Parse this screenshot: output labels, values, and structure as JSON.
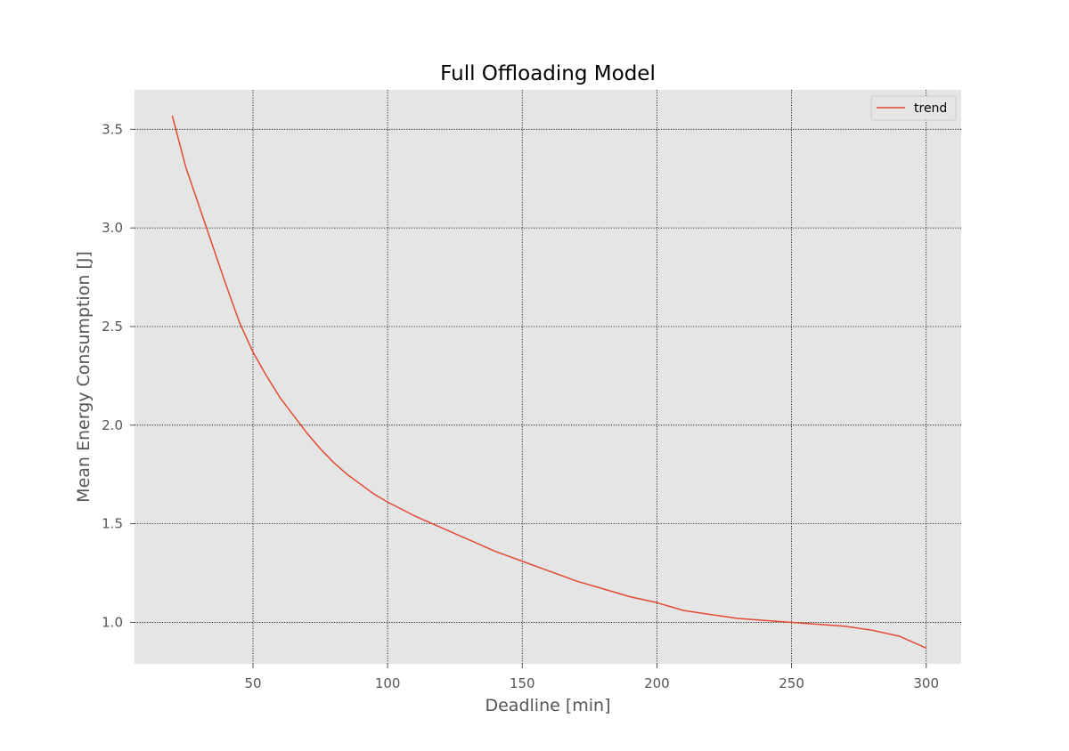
{
  "chart_data": {
    "type": "line",
    "title": "Full Offloading Model",
    "xlabel": "Deadline [min]",
    "ylabel": "Mean Energy Consumption [J]",
    "xlim": [
      6,
      313
    ],
    "ylim": [
      0.79,
      3.7
    ],
    "x_ticks": [
      50,
      100,
      150,
      200,
      250,
      300
    ],
    "y_ticks": [
      1.0,
      1.5,
      2.0,
      2.5,
      3.0,
      3.5
    ],
    "x_tick_labels": [
      "50",
      "100",
      "150",
      "200",
      "250",
      "300"
    ],
    "y_tick_labels": [
      "1.0",
      "1.5",
      "2.0",
      "2.5",
      "3.0",
      "3.5"
    ],
    "grid": true,
    "legend": {
      "position": "top-right"
    },
    "series": [
      {
        "name": "trend",
        "color": "#e24a33",
        "x": [
          20,
          25,
          30,
          35,
          40,
          45,
          50,
          55,
          60,
          65,
          70,
          75,
          80,
          85,
          90,
          95,
          100,
          110,
          120,
          130,
          140,
          150,
          160,
          170,
          180,
          190,
          200,
          210,
          220,
          230,
          240,
          250,
          260,
          270,
          280,
          290,
          300
        ],
        "y": [
          3.57,
          3.31,
          3.11,
          2.91,
          2.71,
          2.52,
          2.37,
          2.25,
          2.14,
          2.05,
          1.96,
          1.88,
          1.81,
          1.75,
          1.7,
          1.65,
          1.61,
          1.54,
          1.48,
          1.42,
          1.36,
          1.31,
          1.26,
          1.21,
          1.17,
          1.13,
          1.1,
          1.06,
          1.04,
          1.02,
          1.01,
          1.0,
          0.99,
          0.98,
          0.96,
          0.93,
          0.87
        ]
      }
    ]
  }
}
